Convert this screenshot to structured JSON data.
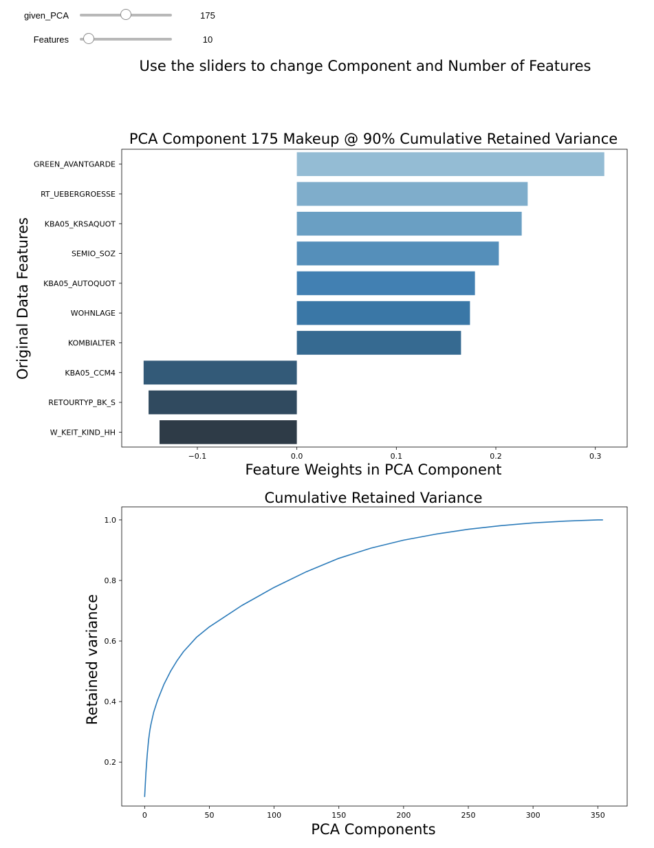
{
  "controls": {
    "pca_slider": {
      "label": "given_PCA",
      "value": "175",
      "fraction": 0.5
    },
    "features_slider": {
      "label": "Features",
      "value": "10",
      "fraction": 0.1
    }
  },
  "instruction": "Use the sliders to change Component and Number of Features",
  "chart_data": [
    {
      "type": "bar",
      "orientation": "horizontal",
      "title": "PCA Component 175 Makeup @ 90% Cumulative Retained Variance",
      "xlabel": "Feature Weights in PCA Component",
      "ylabel": "Original Data Features",
      "categories": [
        "GREEN_AVANTGARDE",
        "RT_UEBERGROESSE",
        "KBA05_KRSAQUOT",
        "SEMIO_SOZ",
        "KBA05_AUTOQUOT",
        "WOHNLAGE",
        "KOMBIALTER",
        "KBA05_CCM4",
        "RETOURTYP_BK_S",
        "W_KEIT_KIND_HH"
      ],
      "values": [
        0.309,
        0.232,
        0.226,
        0.203,
        0.179,
        0.174,
        0.165,
        -0.154,
        -0.149,
        -0.138
      ],
      "colors": [
        "#94bcd4",
        "#7fadcb",
        "#6a9fc3",
        "#558fba",
        "#4280b2",
        "#3a77a6",
        "#366a91",
        "#335a78",
        "#304a5f",
        "#2e3b47"
      ],
      "xlim": [
        -0.176,
        0.332
      ],
      "xticks": [
        -0.1,
        0.0,
        0.1,
        0.2,
        0.3
      ],
      "xtick_labels": [
        "−0.1",
        "0.0",
        "0.1",
        "0.2",
        "0.3"
      ]
    },
    {
      "type": "line",
      "title": "Cumulative Retained Variance",
      "xlabel": "PCA Components",
      "ylabel": "Retained variance",
      "color": "#2a7ab9",
      "xlim": [
        -17.7,
        372.7
      ],
      "ylim": [
        0.055,
        1.043
      ],
      "xticks": [
        0,
        50,
        100,
        150,
        200,
        250,
        300,
        350
      ],
      "yticks": [
        0.2,
        0.4,
        0.6,
        0.8,
        1.0
      ],
      "ytick_labels": [
        "0.2",
        "0.4",
        "0.6",
        "0.8",
        "1.0"
      ],
      "x": [
        0,
        1,
        2,
        3,
        4,
        5,
        7,
        10,
        15,
        20,
        25,
        30,
        40,
        50,
        75,
        100,
        125,
        150,
        175,
        200,
        225,
        250,
        275,
        300,
        325,
        350,
        354
      ],
      "y": [
        0.085,
        0.165,
        0.225,
        0.272,
        0.305,
        0.327,
        0.365,
        0.405,
        0.458,
        0.5,
        0.535,
        0.565,
        0.612,
        0.647,
        0.717,
        0.777,
        0.829,
        0.873,
        0.907,
        0.933,
        0.953,
        0.969,
        0.981,
        0.99,
        0.996,
        1.0,
        1.0
      ]
    }
  ]
}
